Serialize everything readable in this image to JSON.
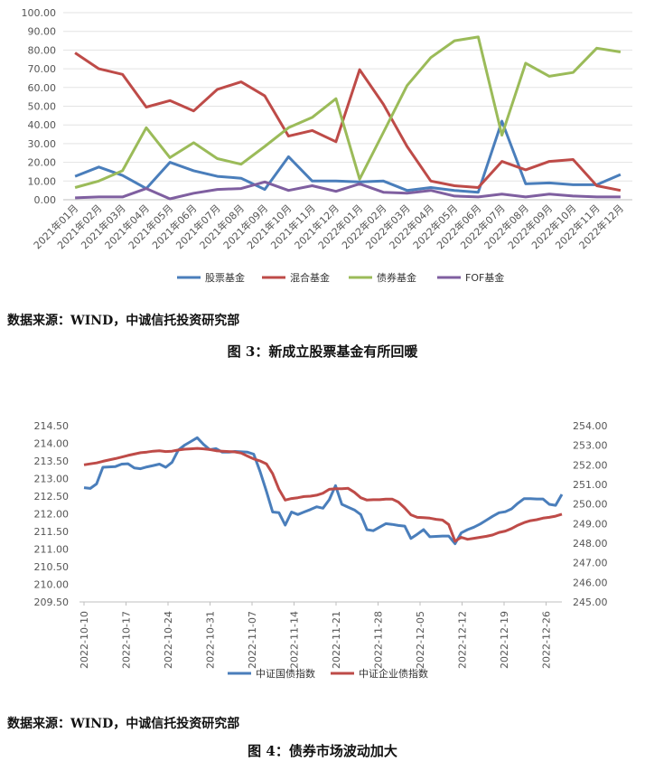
{
  "chart_data": [
    {
      "type": "line",
      "categories": [
        "2021年01月",
        "2021年02月",
        "2021年03月",
        "2021年04月",
        "2021年05月",
        "2021年06月",
        "2021年07月",
        "2021年08月",
        "2021年09月",
        "2021年10月",
        "2021年11月",
        "2021年12月",
        "2022年01月",
        "2022年02月",
        "2022年03月",
        "2022年04月",
        "2022年05月",
        "2022年06月",
        "2022年07月",
        "2022年08月",
        "2022年09月",
        "2022年10月",
        "2022年11月",
        "2022年12月"
      ],
      "yticks": [
        "100.00",
        "90.00",
        "80.00",
        "70.00",
        "60.00",
        "50.00",
        "40.00",
        "30.00",
        "20.00",
        "10.00",
        "0.00"
      ],
      "ylim": [
        0,
        100
      ],
      "grid": true,
      "legend_position": "bottom",
      "series": [
        {
          "name": "股票基金",
          "color": "#4a7ebb",
          "values": [
            12.5,
            17.5,
            13,
            6,
            20,
            15.5,
            12.5,
            11.5,
            5.5,
            23,
            10,
            10,
            9.5,
            10,
            5,
            6.5,
            5,
            4,
            42,
            8.5,
            9,
            8,
            8,
            13.5
          ]
        },
        {
          "name": "混合基金",
          "color": "#be4b48",
          "values": [
            78.5,
            70,
            67,
            49.5,
            53,
            47.5,
            59,
            63,
            55.5,
            34,
            37,
            31,
            69.5,
            51,
            28.5,
            10,
            7.5,
            6.5,
            20.5,
            16,
            20.5,
            21.5,
            7.5,
            5
          ]
        },
        {
          "name": "债券基金",
          "color": "#9bbb59",
          "values": [
            6.5,
            10,
            15.5,
            38.5,
            22.5,
            30.5,
            22,
            19,
            28.5,
            38.5,
            44,
            54,
            11,
            36,
            61,
            76,
            85,
            87,
            34.5,
            73,
            66,
            68,
            81,
            79
          ]
        },
        {
          "name": "FOF基金",
          "color": "#7f5fa0",
          "values": [
            1,
            1.5,
            1.5,
            6,
            0.5,
            3.5,
            5.5,
            6,
            9.5,
            5,
            7.5,
            4.5,
            8.5,
            4,
            3.5,
            5,
            2,
            1.5,
            3,
            1.5,
            3,
            2,
            1.5,
            1.5
          ]
        }
      ]
    },
    {
      "type": "line",
      "xticks": [
        "2022-10-10",
        "2022-10-17",
        "2022-10-24",
        "2022-10-31",
        "2022-11-07",
        "2022-11-14",
        "2022-11-21",
        "2022-11-28",
        "2022-12-05",
        "2022-12-12",
        "2022-12-19",
        "2022-12-26"
      ],
      "yticks_left": [
        "214.50",
        "214.00",
        "213.50",
        "213.00",
        "212.50",
        "212.00",
        "211.50",
        "211.00",
        "210.50",
        "210.00",
        "209.50"
      ],
      "yticks_right": [
        "254.00",
        "253.00",
        "252.00",
        "251.00",
        "250.00",
        "249.00",
        "248.00",
        "247.00",
        "246.00",
        "245.00"
      ],
      "ylim_left": [
        209.5,
        214.5
      ],
      "ylim_right": [
        245,
        254
      ],
      "grid": false,
      "legend_position": "bottom",
      "series": [
        {
          "name": "中证国债指数",
          "color": "#4a7ebb",
          "axis": "left",
          "values": [
            212.74,
            212.72,
            212.85,
            213.32,
            213.33,
            213.34,
            213.41,
            213.42,
            213.3,
            213.28,
            213.33,
            213.37,
            213.41,
            213.32,
            213.46,
            213.81,
            213.95,
            214.05,
            214.16,
            213.97,
            213.82,
            213.85,
            213.75,
            213.75,
            213.77,
            213.76,
            213.75,
            213.69,
            213.2,
            212.64,
            212.05,
            212.03,
            211.68,
            212.05,
            211.98,
            212.05,
            212.12,
            212.2,
            212.16,
            212.4,
            212.8,
            212.27,
            212.19,
            212.11,
            211.98,
            211.55,
            211.52,
            211.62,
            211.72,
            211.7,
            211.67,
            211.65,
            211.3,
            211.42,
            211.55,
            211.35,
            211.36,
            211.37,
            211.37,
            211.15,
            211.46,
            211.55,
            211.62,
            211.71,
            211.82,
            211.93,
            212.03,
            212.06,
            212.14,
            212.3,
            212.43,
            212.43,
            212.42,
            212.42,
            212.27,
            212.24,
            212.55
          ]
        },
        {
          "name": "中证企业债指数",
          "color": "#be4b48",
          "axis": "right",
          "values": [
            252.0,
            252.05,
            252.1,
            252.18,
            252.25,
            252.32,
            252.4,
            252.48,
            252.55,
            252.62,
            252.65,
            252.7,
            252.72,
            252.68,
            252.7,
            252.76,
            252.8,
            252.82,
            252.84,
            252.82,
            252.78,
            252.72,
            252.7,
            252.68,
            252.66,
            252.6,
            252.45,
            252.3,
            252.2,
            252.05,
            251.55,
            250.75,
            250.2,
            250.28,
            250.32,
            250.38,
            250.4,
            250.45,
            250.55,
            250.75,
            250.78,
            250.78,
            250.8,
            250.6,
            250.32,
            250.2,
            250.22,
            250.22,
            250.25,
            250.25,
            250.1,
            249.8,
            249.45,
            249.32,
            249.3,
            249.28,
            249.22,
            249.18,
            248.95,
            248.1,
            248.3,
            248.2,
            248.25,
            248.3,
            248.35,
            248.42,
            248.55,
            248.62,
            248.75,
            248.92,
            249.05,
            249.15,
            249.2,
            249.28,
            249.32,
            249.38,
            249.48
          ]
        }
      ]
    }
  ],
  "chart1_texts": {
    "source": "数据来源：WIND，中诚信托投资研究部",
    "caption": "图 3：新成立股票基金有所回暖"
  },
  "chart2_texts": {
    "source": "数据来源：WIND，中诚信托投资研究部",
    "caption": "图 4：债券市场波动加大"
  }
}
